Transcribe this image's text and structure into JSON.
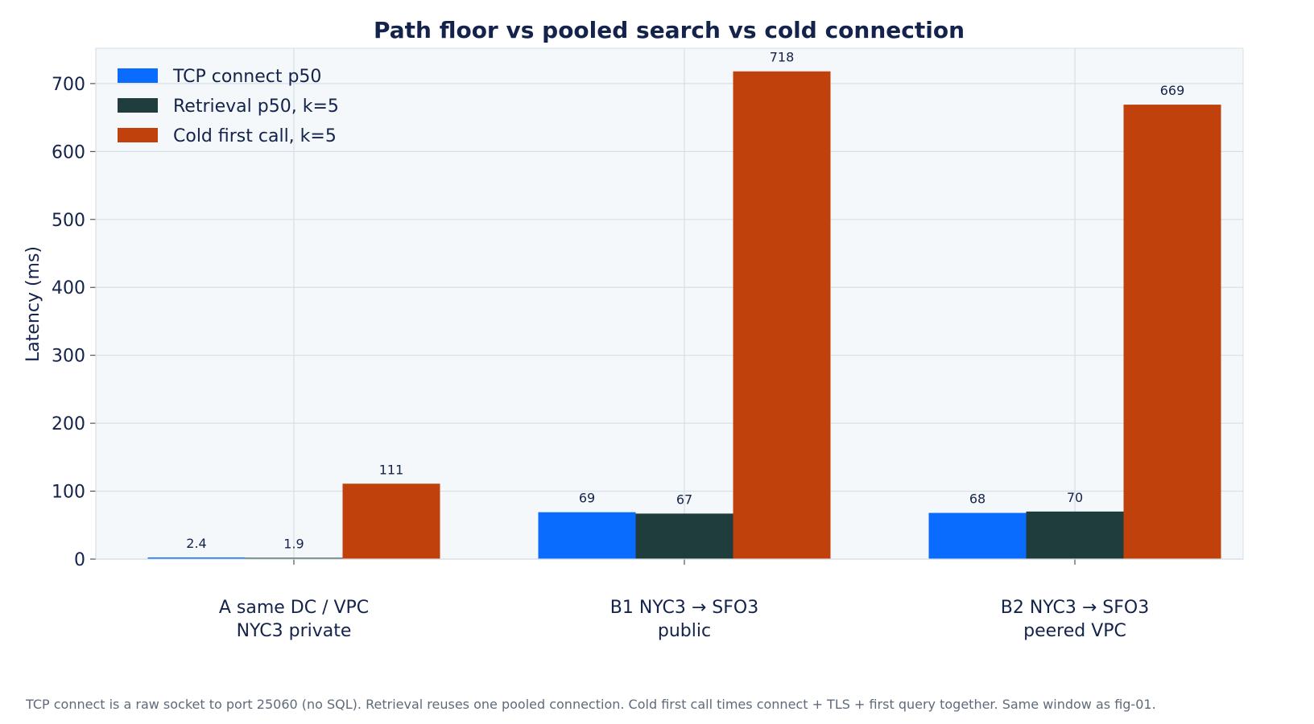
{
  "chart_data": {
    "type": "bar",
    "title": "Path floor vs pooled search vs cold connection",
    "ylabel": "Latency (ms)",
    "xlabel": "",
    "ylim": [
      0,
      752
    ],
    "yticks": [
      0,
      100,
      200,
      300,
      400,
      500,
      600,
      700
    ],
    "grid": true,
    "legend_position": "top-left",
    "categories": [
      [
        "A  same DC / VPC",
        "NYC3 private"
      ],
      [
        "B1  NYC3 → SFO3",
        "public"
      ],
      [
        "B2  NYC3 → SFO3",
        "peered VPC"
      ]
    ],
    "series": [
      {
        "name": "TCP connect p50",
        "color": "#0a6cff",
        "values": [
          2.4,
          69,
          68
        ],
        "labels": [
          "2.4",
          "69",
          "68"
        ]
      },
      {
        "name": "Retrieval p50, k=5",
        "color": "#1f3d3d",
        "values": [
          1.9,
          67,
          70
        ],
        "labels": [
          "1.9",
          "67",
          "70"
        ]
      },
      {
        "name": "Cold first call, k=5",
        "color": "#c1410d",
        "values": [
          111,
          718,
          669
        ],
        "labels": [
          "111",
          "718",
          "669"
        ]
      }
    ],
    "colors": {
      "plot_background": "#f4f8fa",
      "grid": "#d6dfe6",
      "text": "#14234b"
    }
  },
  "footnote": "TCP connect is a raw socket to port 25060 (no SQL). Retrieval reuses one pooled connection. Cold first call times connect + TLS + first query together. Same window as fig-01."
}
